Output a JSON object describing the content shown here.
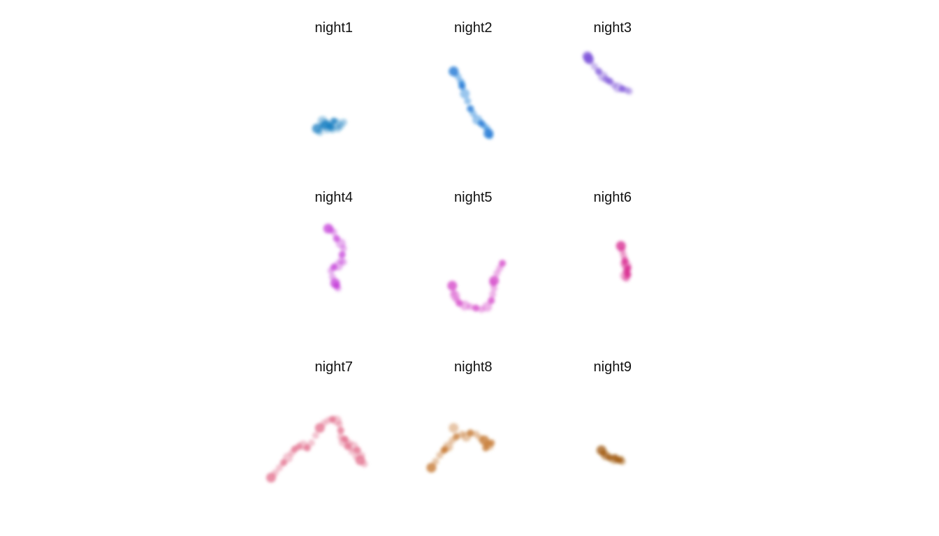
{
  "chart_data": {
    "type": "scatter",
    "panels": [
      {
        "title": "night1",
        "color": "#1a7fc1",
        "points": [
          [
            0.38,
            0.72
          ],
          [
            0.42,
            0.7
          ],
          [
            0.45,
            0.73
          ],
          [
            0.48,
            0.71
          ],
          [
            0.52,
            0.68
          ],
          [
            0.55,
            0.7
          ],
          [
            0.5,
            0.66
          ],
          [
            0.46,
            0.68
          ],
          [
            0.42,
            0.66
          ],
          [
            0.47,
            0.7
          ],
          [
            0.49,
            0.73
          ],
          [
            0.53,
            0.72
          ],
          [
            0.44,
            0.69
          ],
          [
            0.57,
            0.67
          ],
          [
            0.4,
            0.75
          ]
        ]
      },
      {
        "title": "night2",
        "color": "#0a6fd1",
        "points": [
          [
            0.36,
            0.26
          ],
          [
            0.39,
            0.3
          ],
          [
            0.41,
            0.34
          ],
          [
            0.42,
            0.38
          ],
          [
            0.44,
            0.44
          ],
          [
            0.46,
            0.5
          ],
          [
            0.48,
            0.56
          ],
          [
            0.5,
            0.6
          ],
          [
            0.53,
            0.65
          ],
          [
            0.56,
            0.68
          ],
          [
            0.58,
            0.7
          ],
          [
            0.6,
            0.72
          ],
          [
            0.61,
            0.76
          ],
          [
            0.62,
            0.78
          ],
          [
            0.42,
            0.36
          ]
        ]
      },
      {
        "title": "night3",
        "color": "#7a4fd8",
        "points": [
          [
            0.32,
            0.14
          ],
          [
            0.34,
            0.18
          ],
          [
            0.37,
            0.22
          ],
          [
            0.4,
            0.26
          ],
          [
            0.43,
            0.3
          ],
          [
            0.45,
            0.32
          ],
          [
            0.48,
            0.34
          ],
          [
            0.51,
            0.37
          ],
          [
            0.54,
            0.39
          ],
          [
            0.57,
            0.4
          ],
          [
            0.6,
            0.41
          ],
          [
            0.62,
            0.42
          ],
          [
            0.33,
            0.16
          ],
          [
            0.46,
            0.33
          ]
        ]
      },
      {
        "title": "night4",
        "color": "#c43fd8",
        "points": [
          [
            0.46,
            0.16
          ],
          [
            0.48,
            0.17
          ],
          [
            0.5,
            0.19
          ],
          [
            0.52,
            0.24
          ],
          [
            0.55,
            0.28
          ],
          [
            0.57,
            0.32
          ],
          [
            0.56,
            0.37
          ],
          [
            0.55,
            0.42
          ],
          [
            0.53,
            0.46
          ],
          [
            0.5,
            0.47
          ],
          [
            0.48,
            0.5
          ],
          [
            0.49,
            0.55
          ],
          [
            0.51,
            0.6
          ],
          [
            0.53,
            0.64
          ],
          [
            0.57,
            0.43
          ],
          [
            0.52,
            0.62
          ]
        ]
      },
      {
        "title": "night5",
        "color": "#d23fc6",
        "points": [
          [
            0.35,
            0.62
          ],
          [
            0.36,
            0.68
          ],
          [
            0.38,
            0.73
          ],
          [
            0.4,
            0.76
          ],
          [
            0.44,
            0.78
          ],
          [
            0.48,
            0.79
          ],
          [
            0.52,
            0.8
          ],
          [
            0.56,
            0.81
          ],
          [
            0.6,
            0.79
          ],
          [
            0.63,
            0.74
          ],
          [
            0.64,
            0.69
          ],
          [
            0.65,
            0.64
          ],
          [
            0.65,
            0.58
          ],
          [
            0.67,
            0.52
          ],
          [
            0.69,
            0.48
          ],
          [
            0.71,
            0.44
          ],
          [
            0.37,
            0.7
          ],
          [
            0.64,
            0.6
          ]
        ]
      },
      {
        "title": "night6",
        "color": "#d6238c",
        "points": [
          [
            0.56,
            0.3
          ],
          [
            0.57,
            0.34
          ],
          [
            0.58,
            0.38
          ],
          [
            0.59,
            0.42
          ],
          [
            0.6,
            0.46
          ],
          [
            0.6,
            0.5
          ],
          [
            0.61,
            0.53
          ],
          [
            0.6,
            0.56
          ],
          [
            0.59,
            0.54
          ],
          [
            0.61,
            0.48
          ],
          [
            0.58,
            0.44
          ],
          [
            0.6,
            0.51
          ]
        ]
      },
      {
        "title": "night7",
        "color": "#e26b8a",
        "points": [
          [
            0.05,
            0.8
          ],
          [
            0.08,
            0.76
          ],
          [
            0.11,
            0.72
          ],
          [
            0.14,
            0.68
          ],
          [
            0.17,
            0.64
          ],
          [
            0.2,
            0.6
          ],
          [
            0.22,
            0.57
          ],
          [
            0.25,
            0.55
          ],
          [
            0.28,
            0.54
          ],
          [
            0.31,
            0.56
          ],
          [
            0.34,
            0.52
          ],
          [
            0.37,
            0.46
          ],
          [
            0.4,
            0.4
          ],
          [
            0.43,
            0.36
          ],
          [
            0.46,
            0.34
          ],
          [
            0.49,
            0.33
          ],
          [
            0.52,
            0.34
          ],
          [
            0.54,
            0.37
          ],
          [
            0.55,
            0.42
          ],
          [
            0.55,
            0.47
          ],
          [
            0.57,
            0.51
          ],
          [
            0.6,
            0.55
          ],
          [
            0.63,
            0.59
          ],
          [
            0.66,
            0.63
          ],
          [
            0.69,
            0.66
          ],
          [
            0.72,
            0.69
          ],
          [
            0.7,
            0.62
          ],
          [
            0.67,
            0.58
          ],
          [
            0.64,
            0.55
          ],
          [
            0.61,
            0.52
          ],
          [
            0.58,
            0.49
          ],
          [
            0.25,
            0.55
          ]
        ]
      },
      {
        "title": "night8",
        "color": "#c27127",
        "points": [
          [
            0.2,
            0.72
          ],
          [
            0.23,
            0.67
          ],
          [
            0.26,
            0.62
          ],
          [
            0.29,
            0.58
          ],
          [
            0.32,
            0.55
          ],
          [
            0.35,
            0.5
          ],
          [
            0.38,
            0.47
          ],
          [
            0.42,
            0.45
          ],
          [
            0.45,
            0.47
          ],
          [
            0.48,
            0.44
          ],
          [
            0.52,
            0.45
          ],
          [
            0.55,
            0.48
          ],
          [
            0.58,
            0.5
          ],
          [
            0.6,
            0.53
          ],
          [
            0.62,
            0.55
          ],
          [
            0.63,
            0.52
          ],
          [
            0.36,
            0.4
          ],
          [
            0.3,
            0.57
          ],
          [
            0.59,
            0.56
          ]
        ]
      },
      {
        "title": "night9",
        "color": "#a05a10",
        "points": [
          [
            0.42,
            0.58
          ],
          [
            0.44,
            0.61
          ],
          [
            0.46,
            0.63
          ],
          [
            0.48,
            0.64
          ],
          [
            0.51,
            0.65
          ],
          [
            0.53,
            0.66
          ],
          [
            0.55,
            0.66
          ],
          [
            0.57,
            0.67
          ],
          [
            0.45,
            0.62
          ],
          [
            0.52,
            0.64
          ],
          [
            0.43,
            0.6
          ],
          [
            0.56,
            0.65
          ]
        ]
      }
    ]
  }
}
